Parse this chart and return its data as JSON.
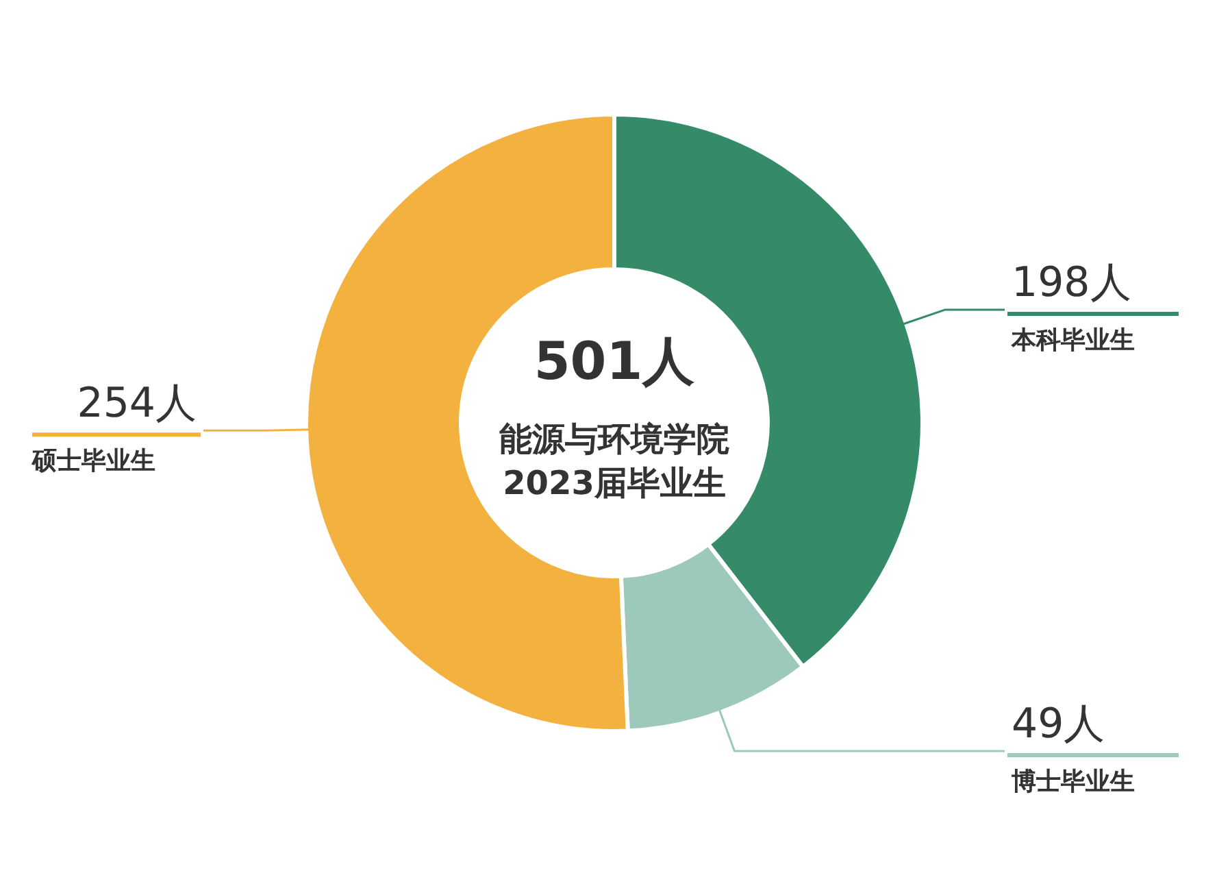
{
  "chart_data": {
    "type": "donut",
    "title": "501人",
    "annotations": [
      "能源与环境学院",
      "2023届毕业生"
    ],
    "categories": [
      "本科毕业生",
      "博士毕业生",
      "硕士毕业生"
    ],
    "values": [
      198,
      49,
      254
    ],
    "colors": [
      "#358a68",
      "#9cc9bb",
      "#f3b140"
    ],
    "value_labels": [
      "198人",
      "49人",
      "254人"
    ]
  }
}
